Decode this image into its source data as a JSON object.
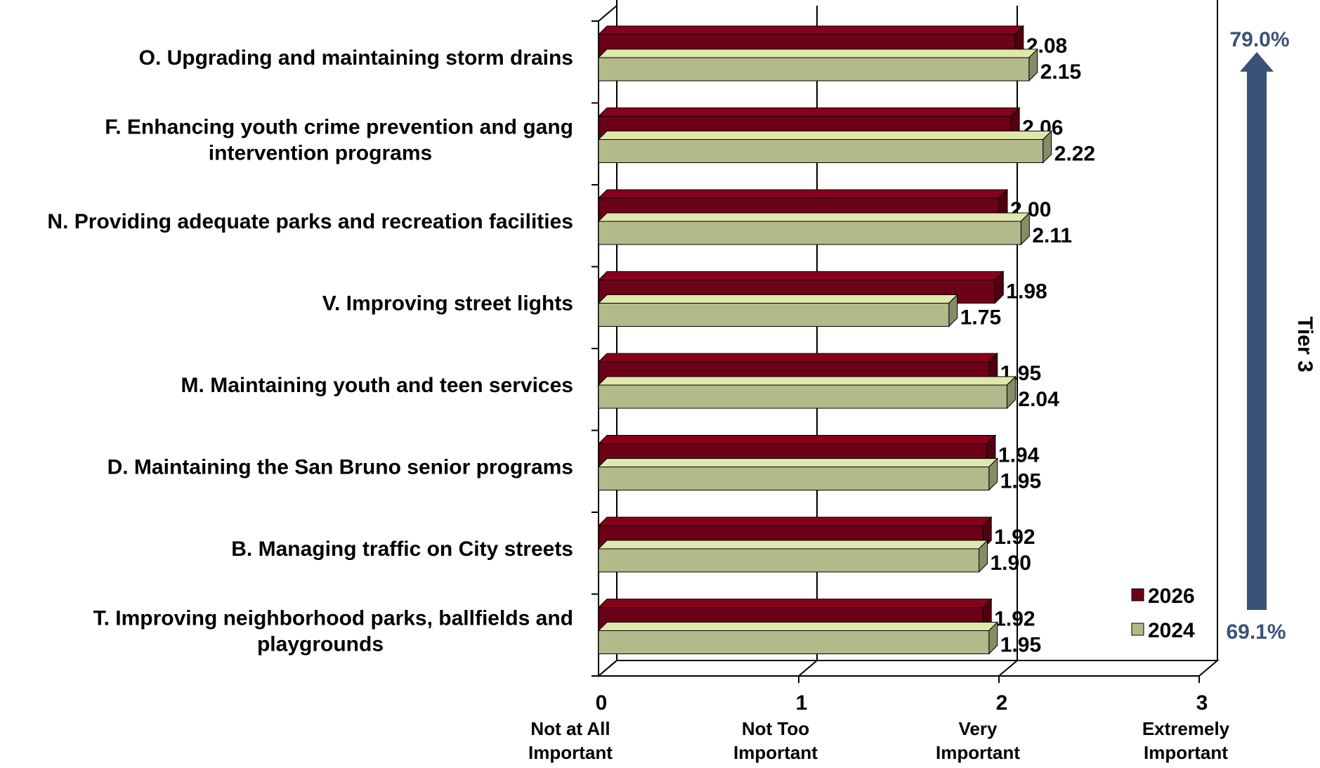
{
  "chart_data": {
    "type": "bar",
    "orientation": "horizontal",
    "categories": [
      [
        "O. Upgrading and maintaining storm drains"
      ],
      [
        "F. Enhancing youth crime prevention and gang",
        "intervention programs"
      ],
      [
        "N. Providing adequate parks and recreation facilities"
      ],
      [
        "V. Improving street lights"
      ],
      [
        "M. Maintaining youth and teen services"
      ],
      [
        "D. Maintaining the San Bruno senior programs"
      ],
      [
        "B. Managing traffic on City streets"
      ],
      [
        "T. Improving neighborhood parks, ballfields and",
        "playgrounds"
      ]
    ],
    "series": [
      {
        "name": "2026",
        "color": "#6b0016",
        "values": [
          2.08,
          2.06,
          2.0,
          1.98,
          1.95,
          1.94,
          1.92,
          1.92
        ],
        "labels": [
          "2.08",
          "2.06",
          "2.00",
          "1.98",
          "1.95",
          "1.94",
          "1.92",
          "1.92"
        ]
      },
      {
        "name": "2024",
        "color": "#b3b98a",
        "values": [
          2.15,
          2.22,
          2.11,
          1.75,
          2.04,
          1.95,
          1.9,
          1.95
        ],
        "labels": [
          "2.15",
          "2.22",
          "2.11",
          "1.75",
          "2.04",
          "1.95",
          "1.90",
          "1.95"
        ]
      }
    ],
    "xlim": [
      0,
      3
    ],
    "ticks": [
      {
        "value": 0,
        "label": "0",
        "desc": [
          "Not at All",
          "Important"
        ]
      },
      {
        "value": 1,
        "label": "1",
        "desc": [
          "Not Too",
          "Important"
        ]
      },
      {
        "value": 2,
        "label": "2",
        "desc": [
          "Very",
          "Important"
        ]
      },
      {
        "value": 3,
        "label": "3",
        "desc": [
          "Extremely",
          "Important"
        ]
      }
    ],
    "grid": true,
    "legend": "bottom-right",
    "annotations": {
      "tier_label": "Tier 3",
      "top_pct": "79.0%",
      "bottom_pct": "69.1%",
      "arrow_color": "#3a5278"
    }
  }
}
